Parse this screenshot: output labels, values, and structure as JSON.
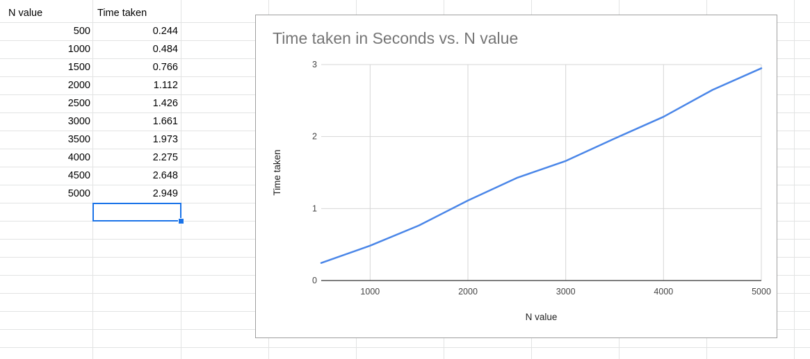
{
  "sheet": {
    "headers": [
      "N value",
      "Time taken"
    ],
    "rows": [
      [
        "500",
        "0.244"
      ],
      [
        "1000",
        "0.484"
      ],
      [
        "1500",
        "0.766"
      ],
      [
        "2000",
        "1.112"
      ],
      [
        "2500",
        "1.426"
      ],
      [
        "3000",
        "1.661"
      ],
      [
        "3500",
        "1.973"
      ],
      [
        "4000",
        "2.275"
      ],
      [
        "4500",
        "2.648"
      ],
      [
        "5000",
        "2.949"
      ]
    ]
  },
  "chart_data": {
    "type": "line",
    "title": "Time taken in Seconds vs. N value",
    "xlabel": "N value",
    "ylabel": "Time taken",
    "xlim": [
      500,
      5000
    ],
    "ylim": [
      0,
      3
    ],
    "xticks": [
      1000,
      2000,
      3000,
      4000,
      5000
    ],
    "yticks": [
      0,
      1,
      2,
      3
    ],
    "grid": true,
    "series": [
      {
        "color": "#4a86e8",
        "x": [
          500,
          1000,
          1500,
          2000,
          2500,
          3000,
          3500,
          4000,
          4500,
          5000
        ],
        "y": [
          0.244,
          0.484,
          0.766,
          1.112,
          1.426,
          1.661,
          1.973,
          2.275,
          2.648,
          2.949
        ]
      }
    ]
  }
}
